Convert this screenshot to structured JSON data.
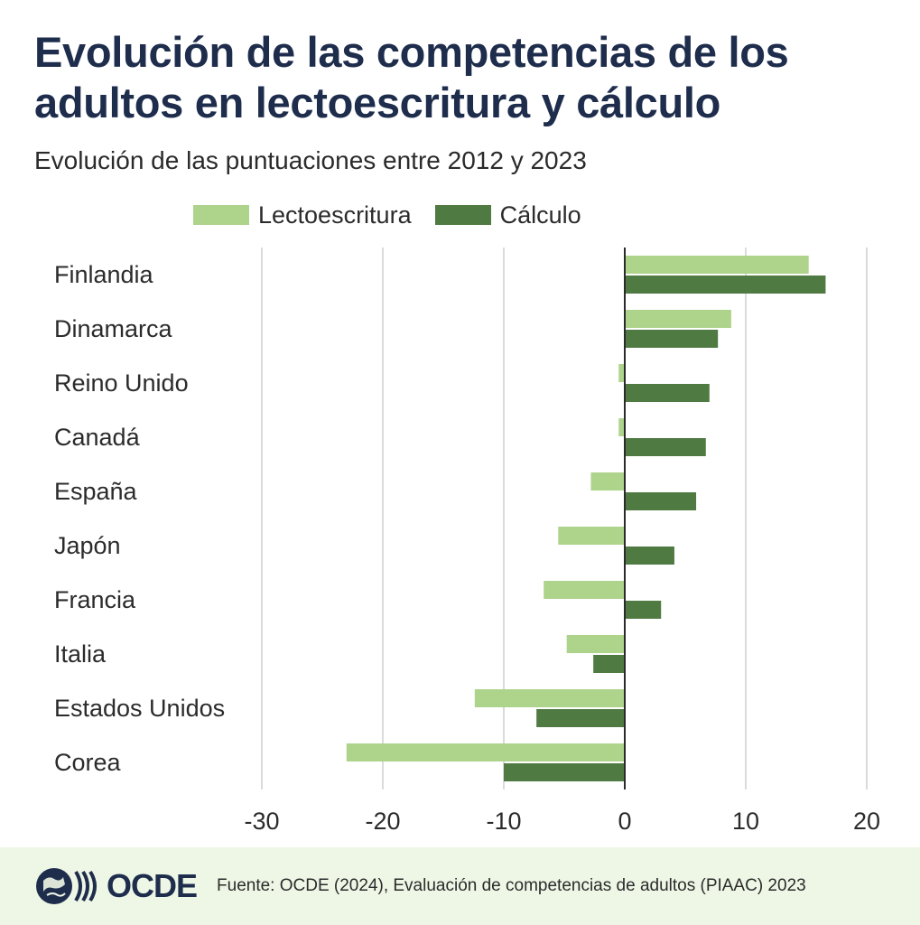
{
  "header": {
    "title": "Evolución de las competencias de los adultos en lectoescritura  y cálculo",
    "subtitle": "Evolución de las puntuaciones entre 2012 y 2023"
  },
  "chart_data": {
    "type": "bar",
    "orientation": "horizontal",
    "categories": [
      "Finlandia",
      "Dinamarca",
      "Reino Unido",
      "Canadá",
      "España",
      "Japón",
      "Francia",
      "Italia",
      "Estados Unidos",
      "Corea"
    ],
    "series": [
      {
        "name": "Lectoescritura",
        "color": "#aed38b",
        "values": [
          15.2,
          8.8,
          -0.5,
          -0.5,
          -2.8,
          -5.5,
          -6.7,
          -4.8,
          -12.4,
          -23.0
        ]
      },
      {
        "name": "Cálculo",
        "color": "#4f7a42",
        "values": [
          16.6,
          7.7,
          7.0,
          6.7,
          5.9,
          4.1,
          3.0,
          -2.6,
          -7.3,
          -10.0
        ]
      }
    ],
    "xlim": [
      -30,
      20
    ],
    "xticks": [
      "-30",
      "-20",
      "-10",
      "0",
      "10",
      "20"
    ],
    "grid": true,
    "legend": "top"
  },
  "footer": {
    "logo_text": "OCDE",
    "source": "Fuente: OCDE (2024), Evaluación de competencias de adultos (PIAAC) 2023"
  }
}
